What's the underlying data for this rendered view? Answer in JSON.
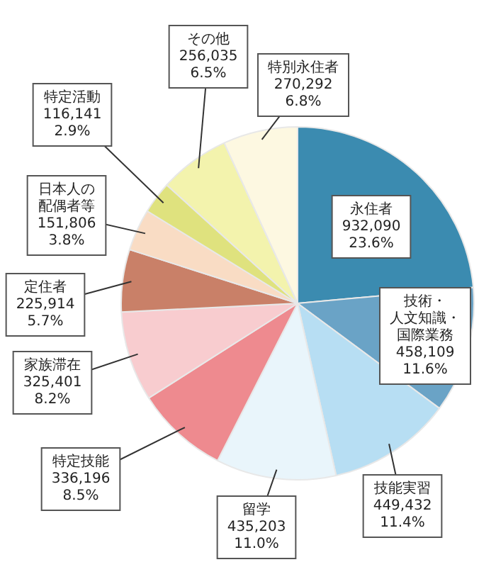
{
  "chart_data": {
    "type": "pie",
    "categories": [
      "永住者",
      "技術・人文知識・国際業務",
      "技能実習",
      "留学",
      "特定技能",
      "家族滞在",
      "定住者",
      "日本人の配偶者等",
      "特定活動",
      "その他",
      "特別永住者"
    ],
    "values": [
      932090,
      458109,
      449432,
      435203,
      336196,
      325401,
      225914,
      151806,
      116141,
      256035,
      270292
    ],
    "value_labels": [
      "932,090\n23.6%",
      "458,109\n11.6%",
      "449,432\n11.4%",
      "435,203\n11.0%",
      "336,196\n8.5%",
      "325,401\n8.2%",
      "225,914\n5.7%",
      "151,806\n3.8%",
      "116,141\n2.9%",
      "256,035\n6.5%",
      "270,292\n6.8%"
    ],
    "colors": [
      "#3b8bb0",
      "#6aa3c6",
      "#b7def3",
      "#e9f5fb",
      "#ee8a8f",
      "#f8cccf",
      "#c98068",
      "#f9dcc4",
      "#dfe27e",
      "#f3f3ad",
      "#fdf8e1"
    ],
    "legend": false
  }
}
